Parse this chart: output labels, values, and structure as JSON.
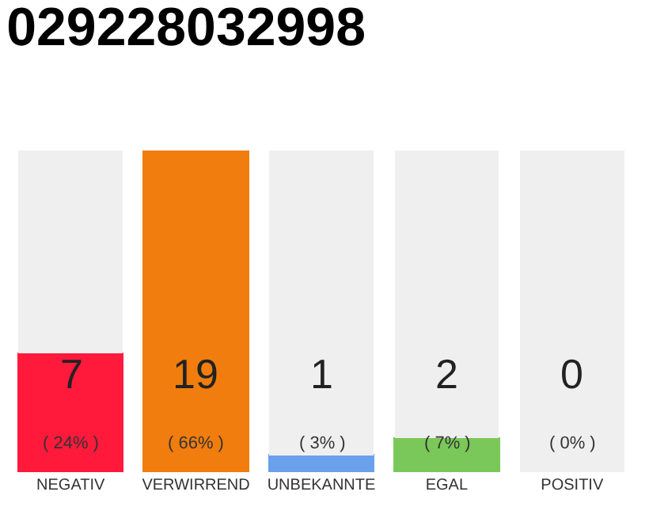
{
  "chart_data": {
    "type": "bar",
    "title": "029228032998",
    "stacked": true,
    "categories": [
      "NEGATIV",
      "VERWIRREND",
      "UNBEKANNTE",
      "EGAL",
      "POSITIV"
    ],
    "series": [
      {
        "colors": [
          "#ff1a3c",
          "#f07d0d",
          "#6aa0ec",
          "#7ac85a",
          "#22a84a"
        ],
        "values": [
          7,
          19,
          1,
          2,
          0
        ],
        "value_labels": [
          "7\n( 24% )",
          "19\n( 66% )",
          "1\n( 3% )",
          "2\n( 7% )",
          "0\n( 0% )"
        ]
      },
      {
        "color": "#efefef",
        "values": [
          12,
          0,
          18,
          17,
          19
        ]
      }
    ],
    "ylim": [
      0,
      19
    ]
  }
}
